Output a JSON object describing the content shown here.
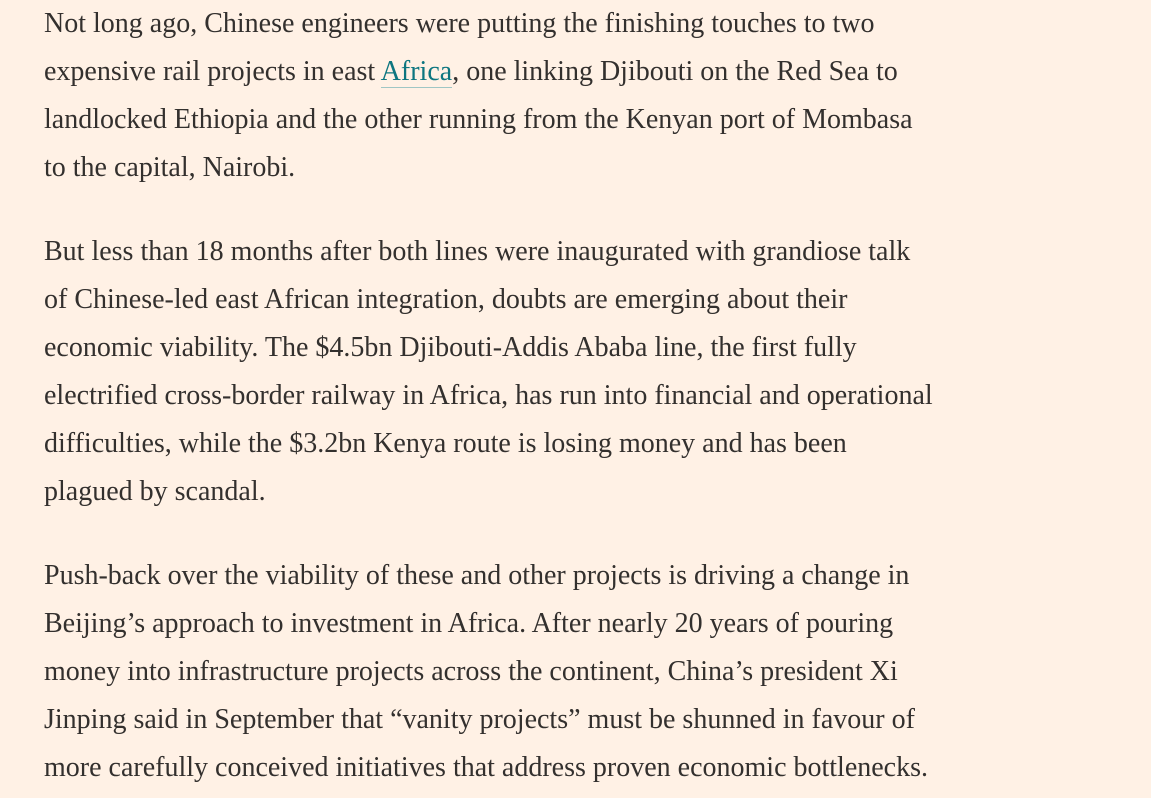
{
  "article": {
    "paragraphs": [
      {
        "lines": [
          "Not long ago, Chinese engineers were putting the finishing touches to two",
          {
            "before": "expensive rail projects in east ",
            "link": "Africa",
            "after": ", one linking Djibouti on the Red Sea to"
          },
          "landlocked Ethiopia and the other running from the Kenyan port of Mombasa",
          "to the capital, Nairobi."
        ]
      },
      {
        "lines": [
          "But less than 18 months after both lines were inaugurated with grandiose talk",
          "of Chinese-led east African integration, doubts are emerging about their",
          "economic viability. The $4.5bn Djibouti-Addis Ababa line, the first fully",
          "electrified cross-border railway in Africa, has run into financial and operational",
          "difficulties, while the $3.2bn Kenya route is losing money and has been",
          "plagued by scandal."
        ]
      },
      {
        "lines": [
          "Push-back over the viability of these and other projects is driving a change in",
          "Beijing’s approach to investment in Africa. After nearly 20 years of pouring",
          "money into infrastructure projects across the continent, China’s president Xi",
          "Jinping said in September that “vanity projects” must be shunned in favour of",
          "more carefully conceived initiatives that address proven economic bottlenecks."
        ]
      }
    ]
  }
}
